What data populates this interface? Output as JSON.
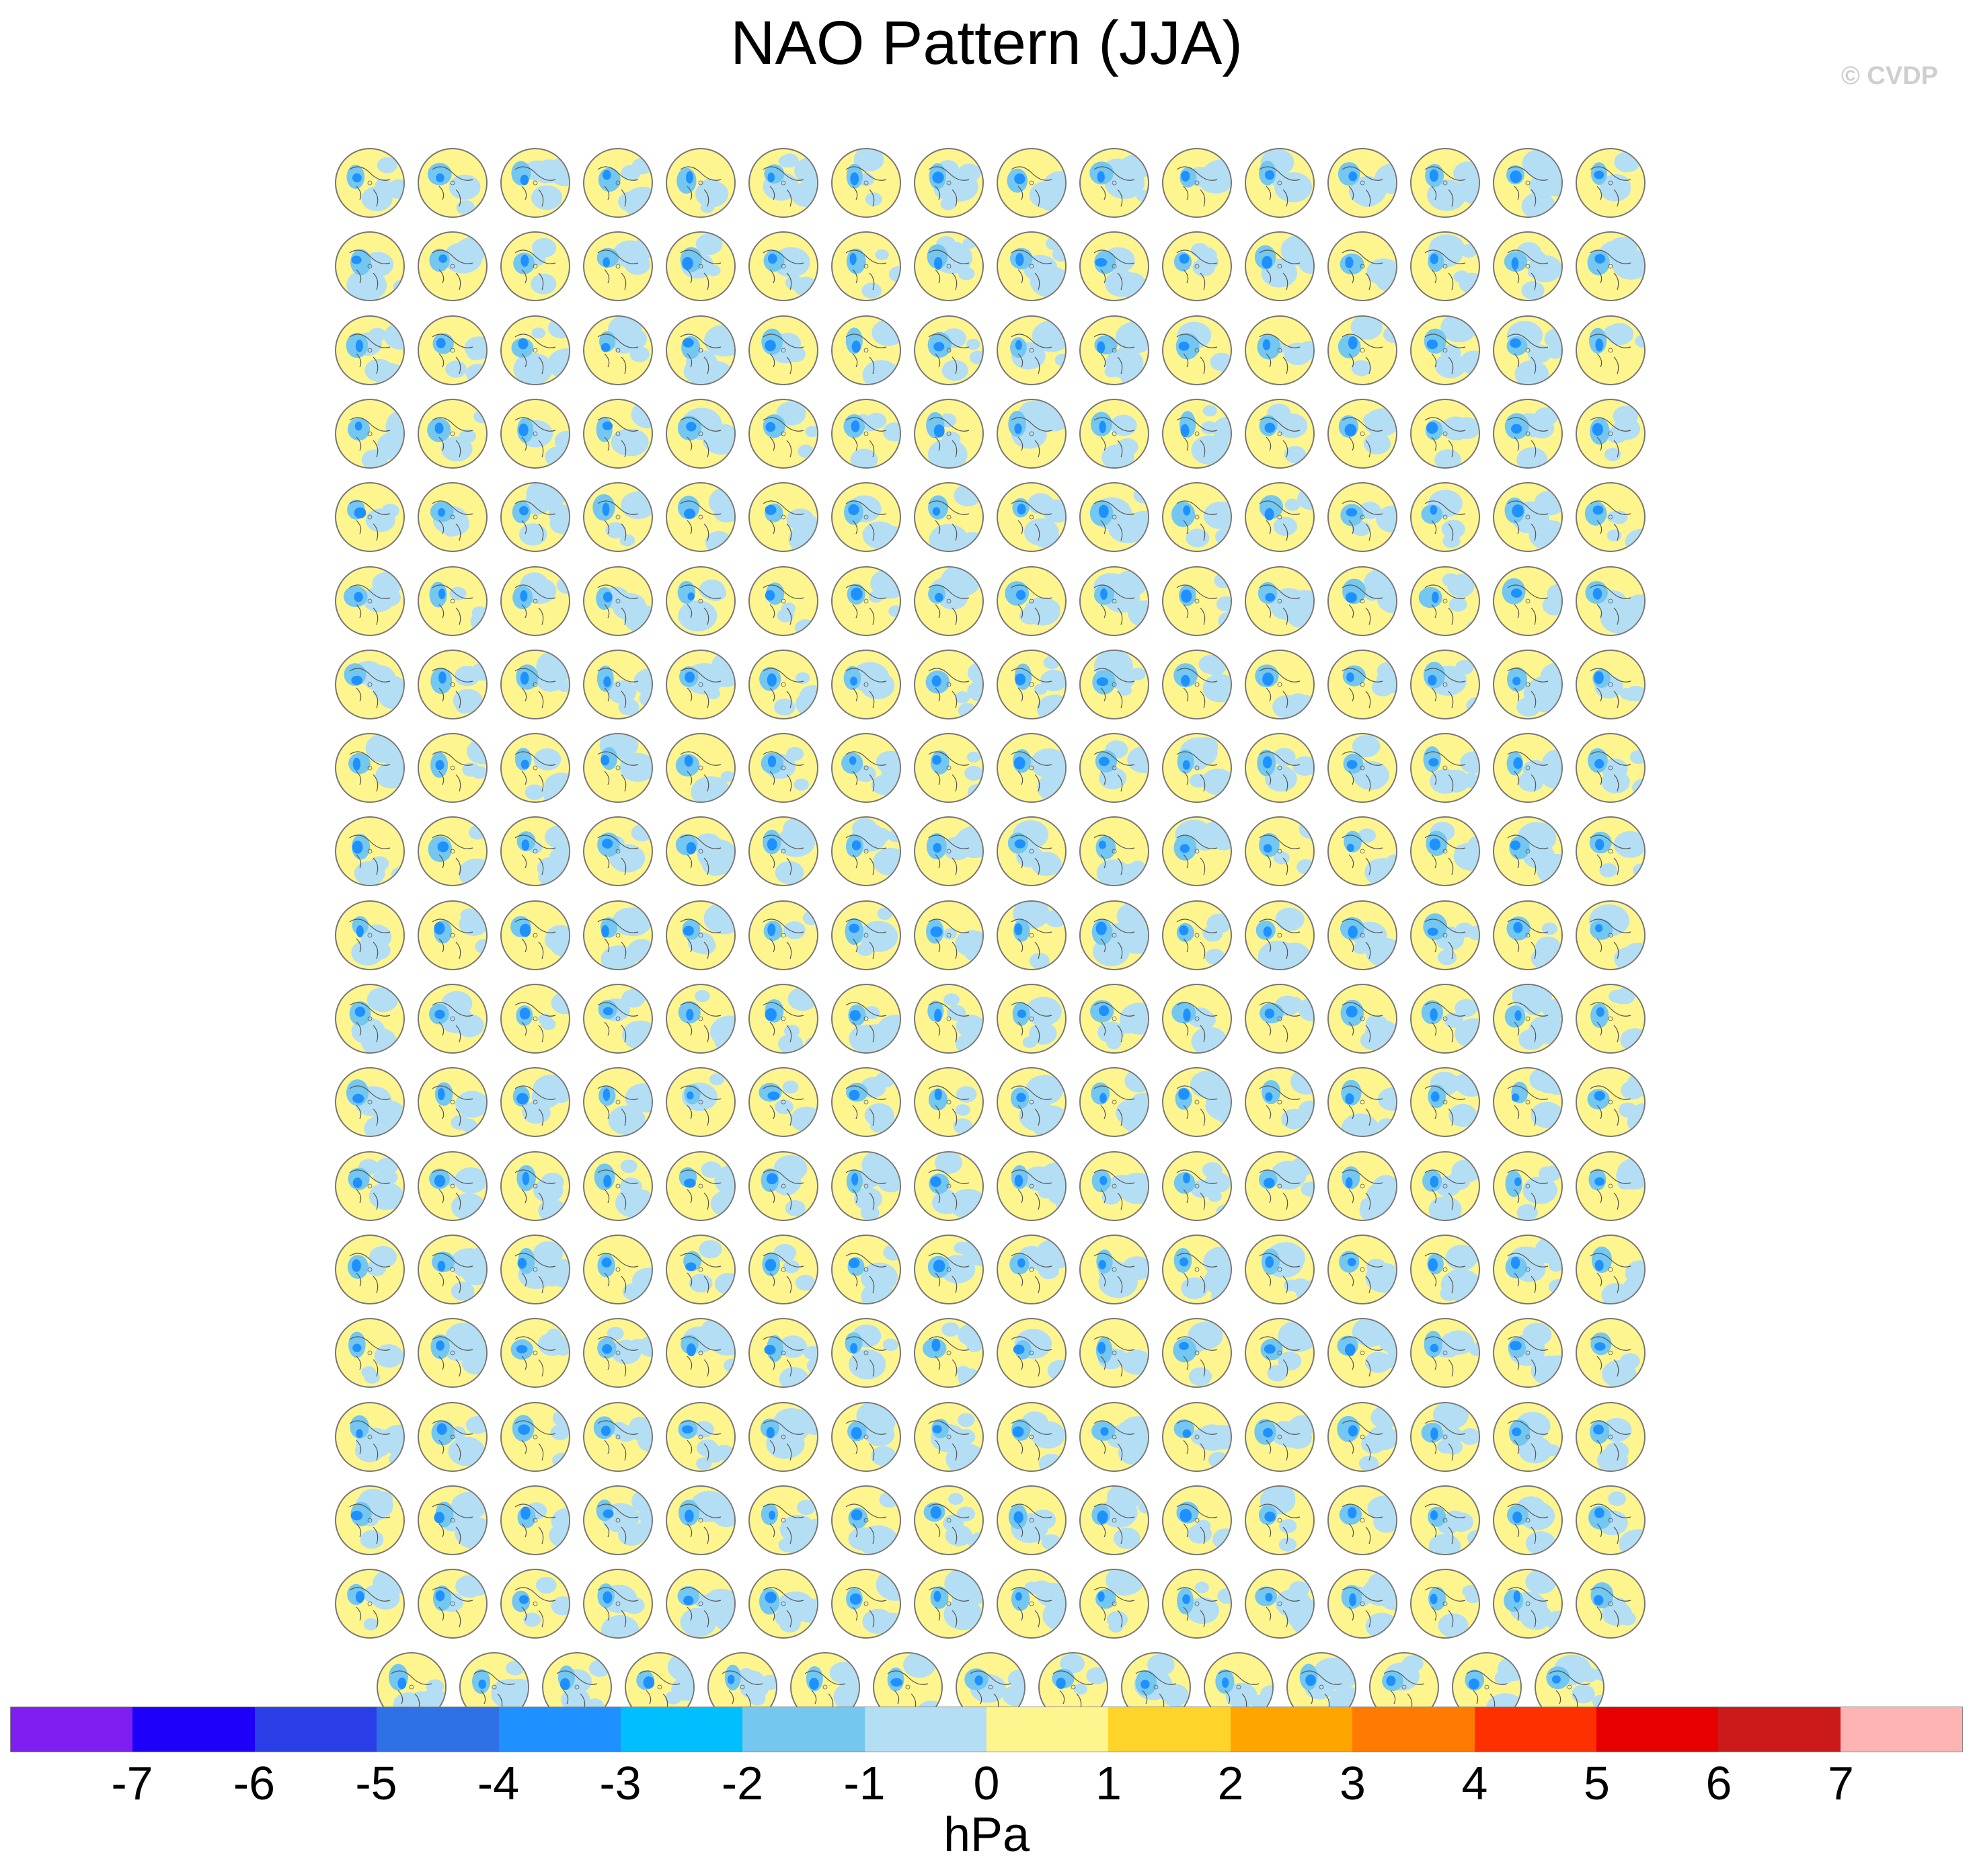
{
  "title": "NAO Pattern (JJA)",
  "copyright": "© CVDP",
  "colorbar": {
    "colors": [
      "#7e1ef0",
      "#1e00fa",
      "#2a3ee8",
      "#3070e6",
      "#1e90ff",
      "#00bfff",
      "#74c7f0",
      "#b4def4",
      "#fff58f",
      "#ffd42a",
      "#ffa500",
      "#ff7a00",
      "#ff3000",
      "#e60000",
      "#cc1a1a",
      "#ffb4b4"
    ],
    "labels": [
      "-7",
      "-6",
      "-5",
      "-4",
      "-3",
      "-2",
      "-1",
      "0",
      "1",
      "2",
      "3",
      "4",
      "5",
      "6",
      "7"
    ],
    "units": "hPa"
  },
  "panels": {
    "row_counts": [
      16,
      16,
      16,
      16,
      16,
      16,
      16,
      16,
      16,
      16,
      16,
      16,
      16,
      16,
      16,
      16,
      16,
      16,
      15
    ],
    "colors": {
      "positive": "#fff58f",
      "negative_light": "#b4def4",
      "negative_mid": "#74c7f0",
      "negative_strong": "#1e90ff",
      "land": "#555555"
    }
  }
}
